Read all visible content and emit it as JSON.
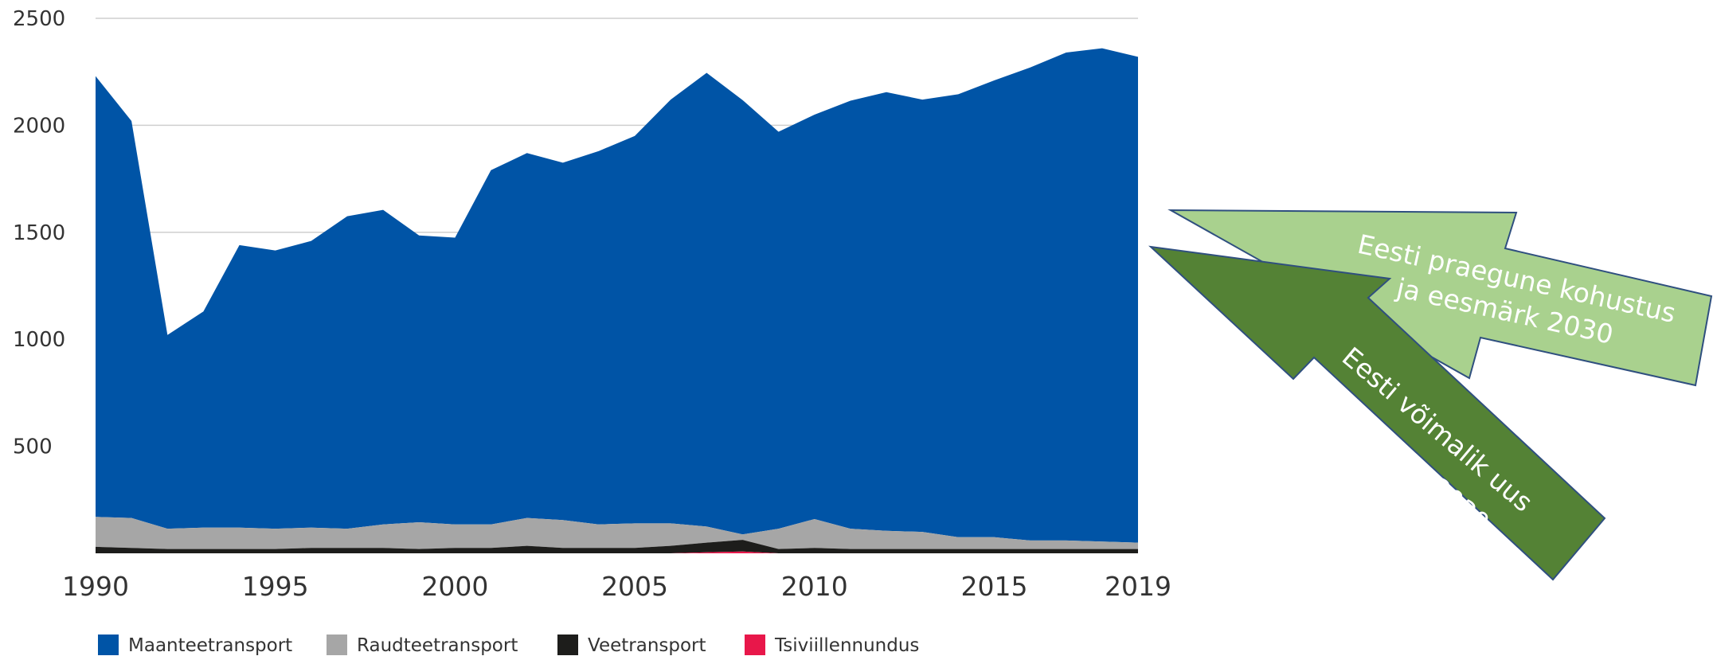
{
  "chart_data": {
    "type": "area",
    "stacked": true,
    "x": [
      1990,
      1991,
      1992,
      1993,
      1994,
      1995,
      1996,
      1997,
      1998,
      1999,
      2000,
      2001,
      2002,
      2003,
      2004,
      2005,
      2006,
      2007,
      2008,
      2009,
      2010,
      2011,
      2012,
      2013,
      2014,
      2015,
      2016,
      2017,
      2018,
      2019
    ],
    "x_ticks": [
      "1990",
      "1995",
      "2000",
      "2005",
      "2010",
      "2015",
      "2019"
    ],
    "y_ticks": [
      "500",
      "1000",
      "1500",
      "2000",
      "2500"
    ],
    "ylim": [
      0,
      2500
    ],
    "grid": true,
    "legend_position": "bottom",
    "series": [
      {
        "name": "Tsiviillennundus",
        "color": "#e8174a",
        "values": [
          0,
          0,
          0,
          0,
          0,
          0,
          0,
          0,
          0,
          0,
          0,
          0,
          0,
          0,
          0,
          0,
          0,
          5,
          8,
          0,
          0,
          0,
          0,
          0,
          0,
          0,
          0,
          0,
          0,
          0
        ]
      },
      {
        "name": "Veetransport",
        "color": "#1d1d1b",
        "values": [
          30,
          25,
          20,
          20,
          20,
          20,
          25,
          25,
          25,
          20,
          25,
          25,
          35,
          25,
          25,
          25,
          35,
          45,
          55,
          20,
          25,
          20,
          20,
          20,
          20,
          20,
          20,
          20,
          20,
          20
        ]
      },
      {
        "name": "Raudteetransport",
        "color": "#a6a6a6",
        "values": [
          140,
          140,
          95,
          100,
          100,
          95,
          95,
          90,
          110,
          125,
          110,
          110,
          130,
          130,
          110,
          115,
          105,
          75,
          25,
          95,
          135,
          95,
          85,
          80,
          55,
          55,
          40,
          40,
          35,
          30
        ]
      },
      {
        "name": "Maanteetransport",
        "color": "#0054a6",
        "values": [
          2060,
          1855,
          905,
          1010,
          1320,
          1300,
          1340,
          1460,
          1470,
          1340,
          1340,
          1655,
          1705,
          1670,
          1745,
          1810,
          1980,
          2120,
          2030,
          1855,
          1890,
          2000,
          2050,
          2020,
          2070,
          2135,
          2210,
          2280,
          2305,
          2270
        ]
      }
    ],
    "legend": [
      "Maanteetransport",
      "Raudteetransport",
      "Veetransport",
      "Tsiviillennundus"
    ]
  },
  "annotations": {
    "current": {
      "text_line1": "Eesti praegune kohustus",
      "text_line2": "ja eesmärk 2030",
      "color": "#a9d18e",
      "border": "#2f4f7f"
    },
    "possible": {
      "text_line1": "Eesti võimalik uus",
      "text_line2": "kohustus 2030",
      "color": "#548235",
      "border": "#2f4f7f"
    }
  },
  "colors": {
    "grid": "#cfcfcf",
    "text": "#333333"
  }
}
